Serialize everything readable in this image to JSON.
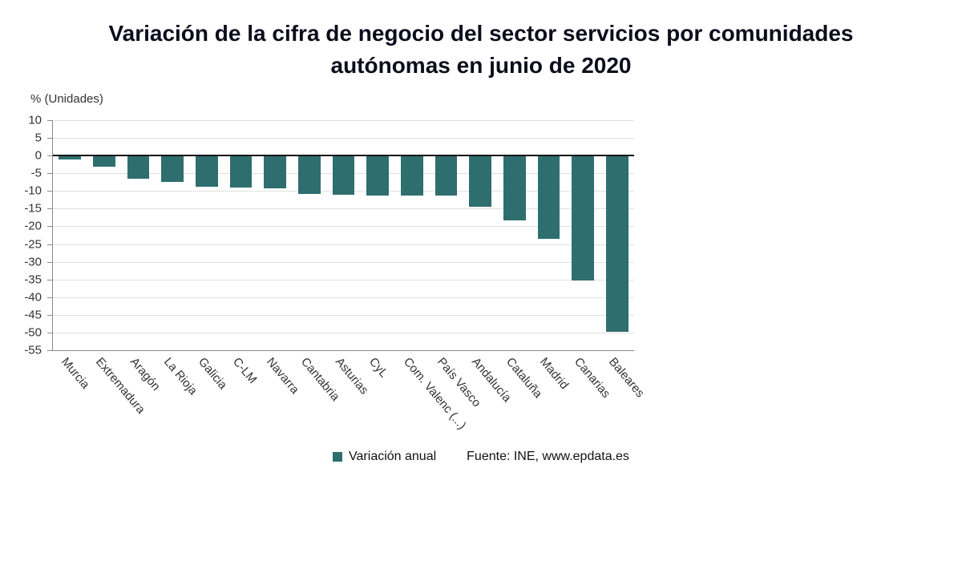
{
  "title": {
    "line1": "Variación de la cifra de negocio del sector servicios por comunidades",
    "line2": "autónomas en junio de 2020"
  },
  "legend": {
    "series_label": "Variación anual",
    "source_label": "Fuente: INE, www.epdata.es"
  },
  "colors": {
    "bar": "#2e6e6e",
    "grid": "#e0e0e0",
    "axis": "#8a8a8a",
    "zero_line": "#141414",
    "title": "#0c0c1c",
    "text": "#333333"
  },
  "chart_data": {
    "type": "bar",
    "title": "Variación de la cifra de negocio del sector servicios por comunidades autónomas en junio de 2020",
    "ylabel": "% (Unidades)",
    "xlabel": "",
    "categories": [
      "Murcia",
      "Extremadura",
      "Aragón",
      "La Rioja",
      "Galicia",
      "C-LM",
      "Navarra",
      "Cantabria",
      "Asturias",
      "CyL",
      "Com. Valenc (...)",
      "País Vasco",
      "Andalucía",
      "Cataluña",
      "Madrid",
      "Canarias",
      "Baleares"
    ],
    "values": [
      -1.0,
      -3.2,
      -6.6,
      -7.5,
      -8.9,
      -9.1,
      -9.3,
      -10.9,
      -11.1,
      -11.4,
      -11.2,
      -11.4,
      -14.5,
      -18.4,
      -23.6,
      -35.3,
      -49.8
    ],
    "series": [
      {
        "name": "Variación anual",
        "values": [
          -1.0,
          -3.2,
          -6.6,
          -7.5,
          -8.9,
          -9.1,
          -9.3,
          -10.9,
          -11.1,
          -11.4,
          -11.2,
          -11.4,
          -14.5,
          -18.4,
          -23.6,
          -35.3,
          -49.8
        ]
      }
    ],
    "ylim": [
      -55,
      10
    ],
    "ytick_step": 5,
    "grid": true,
    "legend_position": "bottom",
    "bar_color": "#2e6e6e",
    "source": "Fuente: INE, www.epdata.es"
  }
}
